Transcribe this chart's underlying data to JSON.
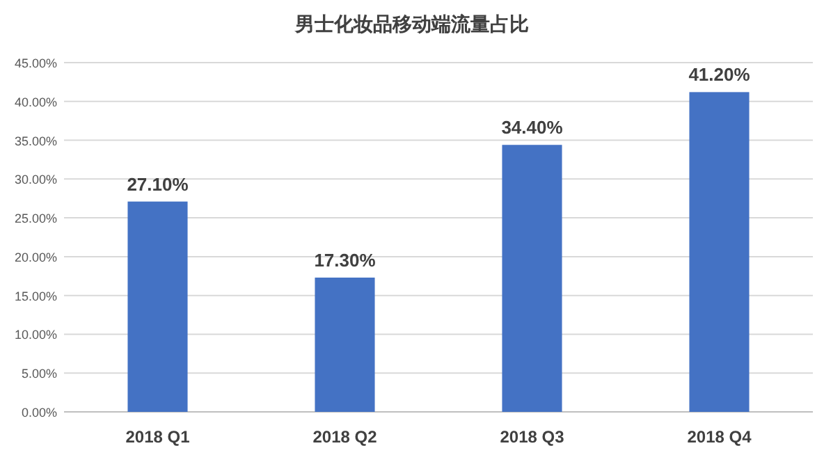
{
  "chart_data": {
    "type": "bar",
    "title": "男士化妆品移动端流量占比",
    "categories": [
      "2018 Q1",
      "2018 Q2",
      "2018 Q3",
      "2018 Q4"
    ],
    "values": [
      27.1,
      17.3,
      34.4,
      41.2
    ],
    "value_labels": [
      "27.10%",
      "17.30%",
      "34.40%",
      "41.20%"
    ],
    "color": "#4472c4",
    "ylim": [
      0,
      45
    ],
    "yticks": [
      {
        "value": 0,
        "label": "0.00%"
      },
      {
        "value": 5,
        "label": "5.00%"
      },
      {
        "value": 10,
        "label": "10.00%"
      },
      {
        "value": 15,
        "label": "15.00%"
      },
      {
        "value": 20,
        "label": "20.00%"
      },
      {
        "value": 25,
        "label": "25.00%"
      },
      {
        "value": 30,
        "label": "30.00%"
      },
      {
        "value": 35,
        "label": "35.00%"
      },
      {
        "value": 40,
        "label": "40.00%"
      },
      {
        "value": 45,
        "label": "45.00%"
      }
    ],
    "grid": "y"
  }
}
